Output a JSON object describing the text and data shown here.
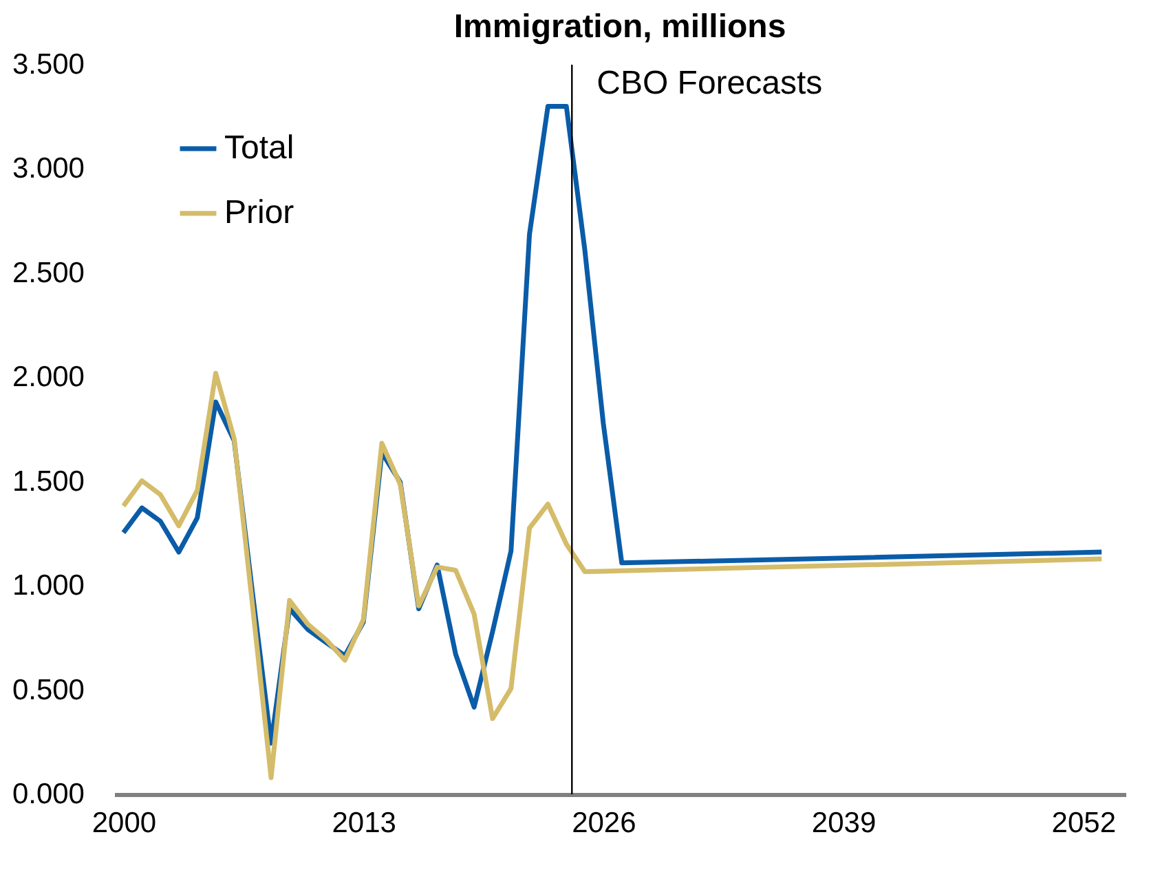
{
  "chart_data": {
    "type": "line",
    "title": "Immigration, millions",
    "series": [
      {
        "name": "Total",
        "color": "#0a5ca8",
        "x": [
          2000,
          2001,
          2002,
          2003,
          2004,
          2005,
          2006,
          2007,
          2008,
          2009,
          2010,
          2011,
          2012,
          2013,
          2014,
          2015,
          2016,
          2017,
          2018,
          2019,
          2020,
          2021,
          2022,
          2023,
          2024,
          2025,
          2026,
          2027,
          2040,
          2053
        ],
        "values": [
          1.255,
          1.374,
          1.31,
          1.162,
          1.326,
          1.882,
          1.696,
          0.96,
          0.245,
          0.89,
          0.79,
          0.727,
          0.665,
          0.826,
          1.64,
          1.497,
          0.89,
          1.1,
          0.672,
          0.418,
          0.78,
          1.167,
          2.686,
          3.3,
          3.3,
          2.61,
          1.78,
          1.11,
          1.135,
          1.162
        ]
      },
      {
        "name": "Prior",
        "color": "#d4bc6a",
        "x": [
          2000,
          2001,
          2002,
          2003,
          2004,
          2005,
          2006,
          2007,
          2008,
          2009,
          2010,
          2011,
          2012,
          2013,
          2014,
          2015,
          2016,
          2017,
          2018,
          2019,
          2020,
          2021,
          2022,
          2023,
          2024,
          2025,
          2026,
          2027,
          2040,
          2053
        ],
        "values": [
          1.383,
          1.504,
          1.438,
          1.288,
          1.458,
          2.02,
          1.706,
          0.9,
          0.08,
          0.93,
          0.815,
          0.74,
          0.643,
          0.838,
          1.684,
          1.486,
          0.904,
          1.09,
          1.075,
          0.865,
          0.363,
          0.507,
          1.277,
          1.392,
          1.2,
          1.068,
          1.07,
          1.072,
          1.1,
          1.129
        ]
      }
    ],
    "xlim": [
      1999.5,
      2054.3
    ],
    "xticks": [
      2000,
      2013,
      2026,
      2039,
      2052
    ],
    "ylim": [
      0,
      3.5
    ],
    "yticks": [
      {
        "value": 0,
        "label": "0.000"
      },
      {
        "value": 0.5,
        "label": "0.500"
      },
      {
        "value": 1,
        "label": "1.000"
      },
      {
        "value": 1.5,
        "label": "1.500"
      },
      {
        "value": 2,
        "label": "2.000"
      },
      {
        "value": 2.5,
        "label": "2.500"
      },
      {
        "value": 3,
        "label": "3.000"
      },
      {
        "value": 3.5,
        "label": "3.500"
      }
    ],
    "ref_lines": [
      {
        "axis": "x",
        "value": 2024.3,
        "label": "CBO Forecasts",
        "color": "#000000"
      }
    ],
    "legend": "top left",
    "grid": false,
    "marker": "none",
    "line_style": "solid"
  }
}
